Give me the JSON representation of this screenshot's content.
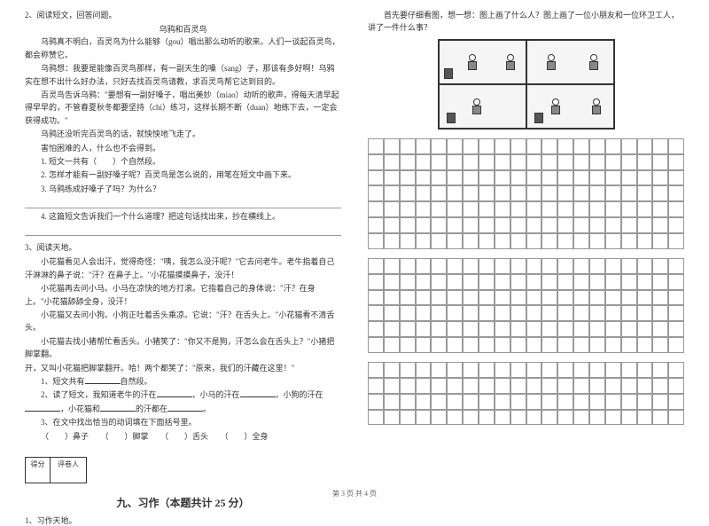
{
  "left": {
    "q2_header": "2、阅读短文，回答问题。",
    "q2_title": "乌鸦和百灵鸟",
    "q2_p1": "乌鸦真不明白，百灵鸟为什么能够（gou）唱出那么动听的歌来。人们一谈起百灵鸟，都会称赞它。",
    "q2_p2": "乌鸦想：我要是能像百灵鸟那样，有一副天生的嗓（sang）子，那该有多好啊！乌鸦实在想不出什么好办法，只好去找百灵鸟请教，求百灵鸟帮它达到目的。",
    "q2_p3": "百灵鸟告诉乌鸦：\"要想有一副好嗓子，唱出美妙（miao）动听的歌声，得每天清早起得早早的，不管春夏秋冬都要坚持（chi）练习，这样长期不断（duan）地练下去，一定会获得成功。\"",
    "q2_p4": "乌鸦还没听完百灵鸟的话，就怏怏地飞走了。",
    "q2_p5": "害怕困难的人，什么也不会得到。",
    "q2_sub1": "1. 短文一共有（　　）个自然段。",
    "q2_sub2": "2. 怎样才能有一副好嗓子呢？百灵鸟是怎么说的，用笔在短文中画下来。",
    "q2_sub3": "3. 乌鸦练成好嗓子了吗？为什么？",
    "q2_sub4": "4. 这篇短文告诉我们一个什么道理？把这句话找出来，抄在横线上。",
    "q3_header": "3、阅读天地。",
    "q3_p1": "小花猫看见人会出汗，觉得奇怪：\"咦，我怎么没汗呢？\"它去问老牛。老牛指着自己汗淋淋的鼻子说：\"汗？在鼻子上。\"小花猫摸摸鼻子，没汗！",
    "q3_p2": "小花猫再去问小马。小马在凉快的地方打滚。它指着自己的身体说：\"汗？在身上。\"小花猫舔舔全身，没汗！",
    "q3_p3": "小花猫又去问小狗。小狗正吐着舌头乘凉。它说：\"汗？在舌头上。\"小花猫看不清舌头。",
    "q3_p4": "小花猫去找小猪帮忙看舌头。小猪笑了：\"你又不是狗，汗怎么会在舌头上？\"小猪把脚掌翻。",
    "q3_p5": "开，又叫小花猫把脚掌翻开。哈！两个都笑了：\"原来，我们的汗藏在这里！\"",
    "q3_sub1_a": "1、短文共有",
    "q3_sub1_b": "自然段。",
    "q3_sub2_a": "2、读了短文，我知道老牛的汗在",
    "q3_sub2_b": "，小马的汗在",
    "q3_sub2_c": "，小狗的汗在",
    "q3_sub2_d": "，小花猫和",
    "q3_sub2_e": "的汗都在",
    "q3_sub3": "3、在文中找出恰当的动词填在下面括号里。",
    "q3_options": "（　　）鼻子　　（　　）脚掌　　（　　）舌头　　（　　）全身",
    "score_label1": "得分",
    "score_label2": "评卷人",
    "section9_title": "九、习作（本题共计 25 分）",
    "q9_1": "1、习作天地。"
  },
  "right": {
    "instruction": "首先要仔细看图，想一想：图上画了什么人？图上画了一位小朋友和一位环卫工人，讲了一件什么事？"
  },
  "footer": "第 3 页 共 4 页",
  "colors": {
    "text": "#333333",
    "bg": "#ffffff",
    "line": "#999999"
  }
}
